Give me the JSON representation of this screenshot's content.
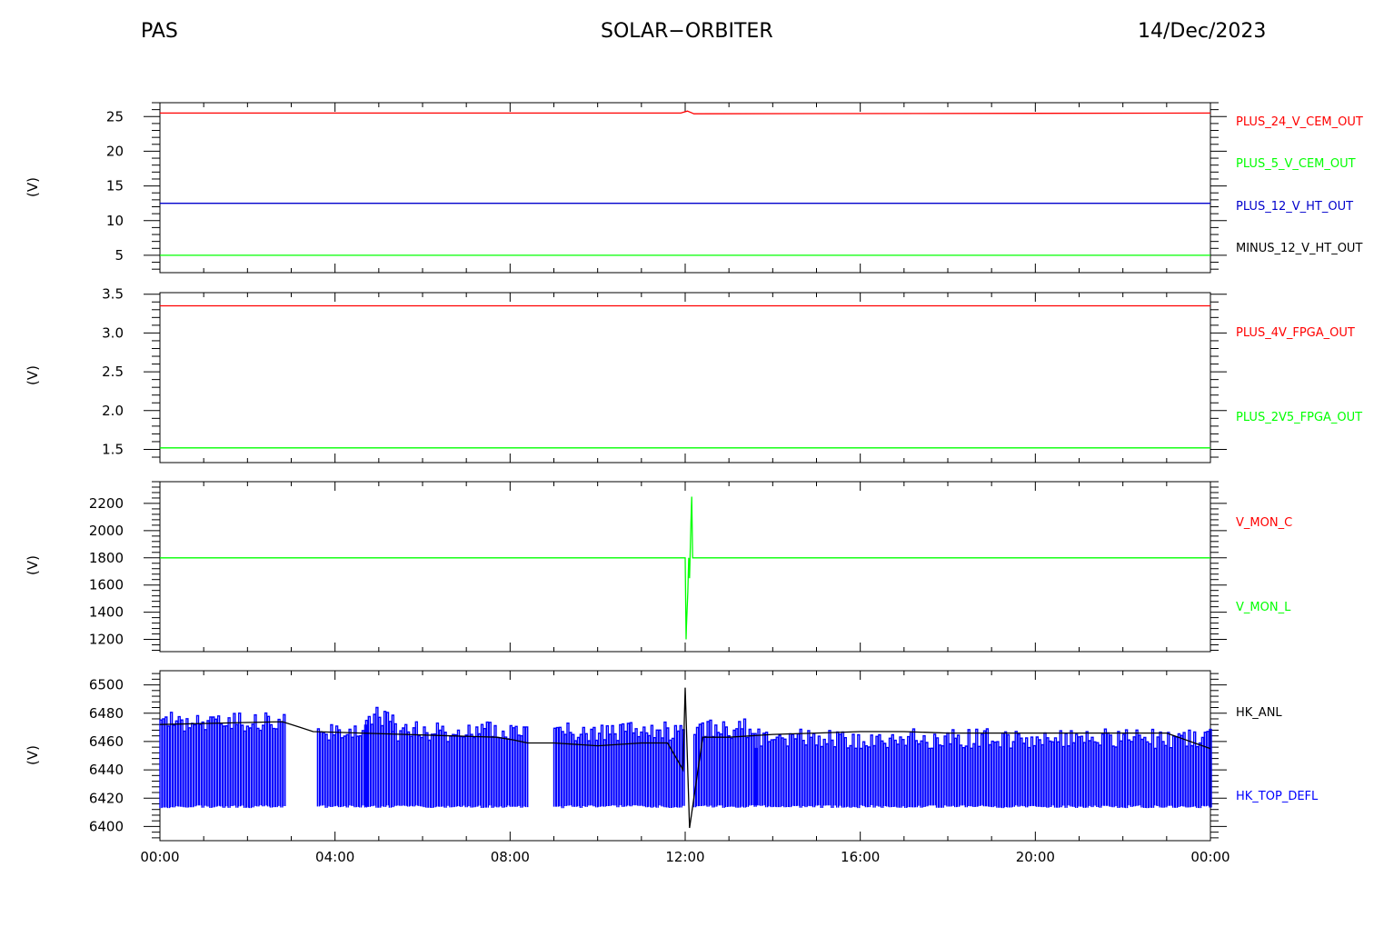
{
  "header": {
    "left": "PAS",
    "center": "SOLAR−ORBITER",
    "right": "14/Dec/2023"
  },
  "chart_data": [
    {
      "type": "line",
      "ylabel": "(V)",
      "ylim": [
        2.5,
        27
      ],
      "yticks": [
        5,
        10,
        15,
        20,
        25
      ],
      "x_unit": "hours",
      "xlim": [
        0,
        24
      ],
      "series": [
        {
          "name": "PLUS_24_V_CEM_OUT",
          "color": "#ff0000",
          "x": [
            0,
            11.9,
            12.05,
            12.2,
            24
          ],
          "values": [
            25.5,
            25.5,
            25.8,
            25.4,
            25.5
          ]
        },
        {
          "name": "PLUS_5_V_CEM_OUT",
          "color": "#00ff00",
          "x": [
            0,
            24
          ],
          "values": [
            5.0,
            5.0
          ]
        },
        {
          "name": "PLUS_12_V_HT_OUT",
          "color": "#0000cc",
          "x": [
            0,
            24
          ],
          "values": [
            12.5,
            12.5
          ]
        },
        {
          "name": "MINUS_12_V_HT_OUT",
          "color": "#000000",
          "x": [],
          "values": []
        }
      ]
    },
    {
      "type": "line",
      "ylabel": "(V)",
      "ylim": [
        1.33,
        3.52
      ],
      "yticks": [
        1.5,
        2.0,
        2.5,
        3.0,
        3.5
      ],
      "x_unit": "hours",
      "xlim": [
        0,
        24
      ],
      "series": [
        {
          "name": "PLUS_4V_FPGA_OUT",
          "color": "#ff0000",
          "x": [
            0,
            24
          ],
          "values": [
            3.35,
            3.35
          ]
        },
        {
          "name": "PLUS_2V5_FPGA_OUT",
          "color": "#00ff00",
          "x": [
            0,
            24
          ],
          "values": [
            1.52,
            1.52
          ]
        }
      ]
    },
    {
      "type": "line",
      "ylabel": "(V)",
      "ylim": [
        1110,
        2360
      ],
      "yticks": [
        1200,
        1400,
        1600,
        1800,
        2000,
        2200
      ],
      "x_unit": "hours",
      "xlim": [
        0,
        24
      ],
      "series": [
        {
          "name": "V_MON_C",
          "color": "#ff0000",
          "x": [],
          "values": []
        },
        {
          "name": "V_MON_L",
          "color": "#00ff00",
          "x": [
            0,
            12.0,
            12.02,
            12.03,
            12.06,
            12.08,
            12.1,
            12.13,
            12.15,
            12.17,
            24
          ],
          "values": [
            1800,
            1800,
            1200,
            1300,
            1550,
            1800,
            1650,
            2050,
            2250,
            1800,
            1800
          ]
        }
      ]
    },
    {
      "type": "line",
      "ylabel": "(V)",
      "ylim": [
        6390,
        6510
      ],
      "yticks": [
        6400,
        6420,
        6440,
        6460,
        6480,
        6500
      ],
      "x_unit": "hours",
      "xlim": [
        0,
        24
      ],
      "series": [
        {
          "name": "HK_ANL",
          "color": "#000000",
          "x": [
            0,
            2.8,
            3.2,
            3.5,
            7.7,
            8.1,
            8.4,
            9.0,
            10.0,
            11.0,
            11.6,
            11.95,
            12.0,
            12.1,
            12.4,
            13.0,
            14.0,
            15.0,
            16.0,
            17.0,
            18.0,
            19.0,
            20.0,
            21.0,
            22.0,
            23.0,
            24.0
          ],
          "values": [
            6472,
            6474,
            6470,
            6467,
            6463,
            6461,
            6459,
            6459,
            6457,
            6459,
            6459,
            6440,
            6498,
            6399,
            6463,
            6463,
            6465,
            6466,
            6467,
            6467,
            6466,
            6466,
            6466,
            6466,
            6466,
            6466,
            6455
          ]
        },
        {
          "name": "HK_TOP_DEFL",
          "color": "#0000ff",
          "x": [],
          "values": []
        }
      ],
      "oscillation": {
        "series": "HK_TOP_DEFL",
        "low": 6413,
        "high_segments": [
          {
            "x_from": 0.0,
            "x_to": 2.85,
            "high": 6481
          },
          {
            "x_from": 3.6,
            "x_to": 4.7,
            "high": 6472
          },
          {
            "x_from": 4.7,
            "x_to": 5.3,
            "high": 6485
          },
          {
            "x_from": 5.3,
            "x_to": 8.4,
            "high": 6474
          },
          {
            "x_from": 9.0,
            "x_to": 12.0,
            "high": 6474
          },
          {
            "x_from": 12.2,
            "x_to": 13.6,
            "high": 6476
          },
          {
            "x_from": 13.6,
            "x_to": 24.0,
            "high": 6469
          }
        ]
      }
    }
  ],
  "xaxis": {
    "tick_labels": [
      "00:00",
      "04:00",
      "08:00",
      "12:00",
      "16:00",
      "20:00",
      "00:00"
    ]
  }
}
